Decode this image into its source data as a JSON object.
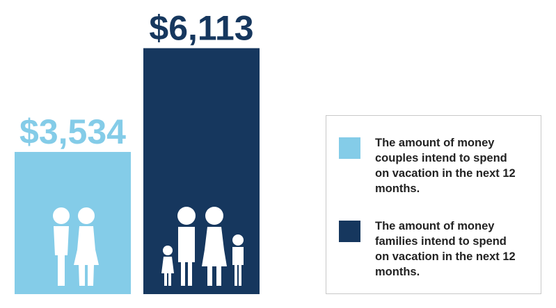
{
  "chart_data": {
    "type": "bar",
    "categories": [
      "Couples",
      "Families"
    ],
    "values": [
      3534,
      6113
    ],
    "value_labels": [
      "$3,534",
      "$6,113"
    ],
    "colors": [
      "#84cce8",
      "#16375e"
    ],
    "ylim": [
      0,
      7000
    ],
    "grid": false,
    "axes_visible": false,
    "legend_position": "right",
    "legend": [
      {
        "color": "#84cce8",
        "label": "The amount of money couples intend to spend on vacation in the next 12 months."
      },
      {
        "color": "#16375e",
        "label": "The amount of money families intend to spend on vacation in the next 12 months."
      }
    ],
    "icons": [
      "couple-icon",
      "family-icon"
    ]
  }
}
